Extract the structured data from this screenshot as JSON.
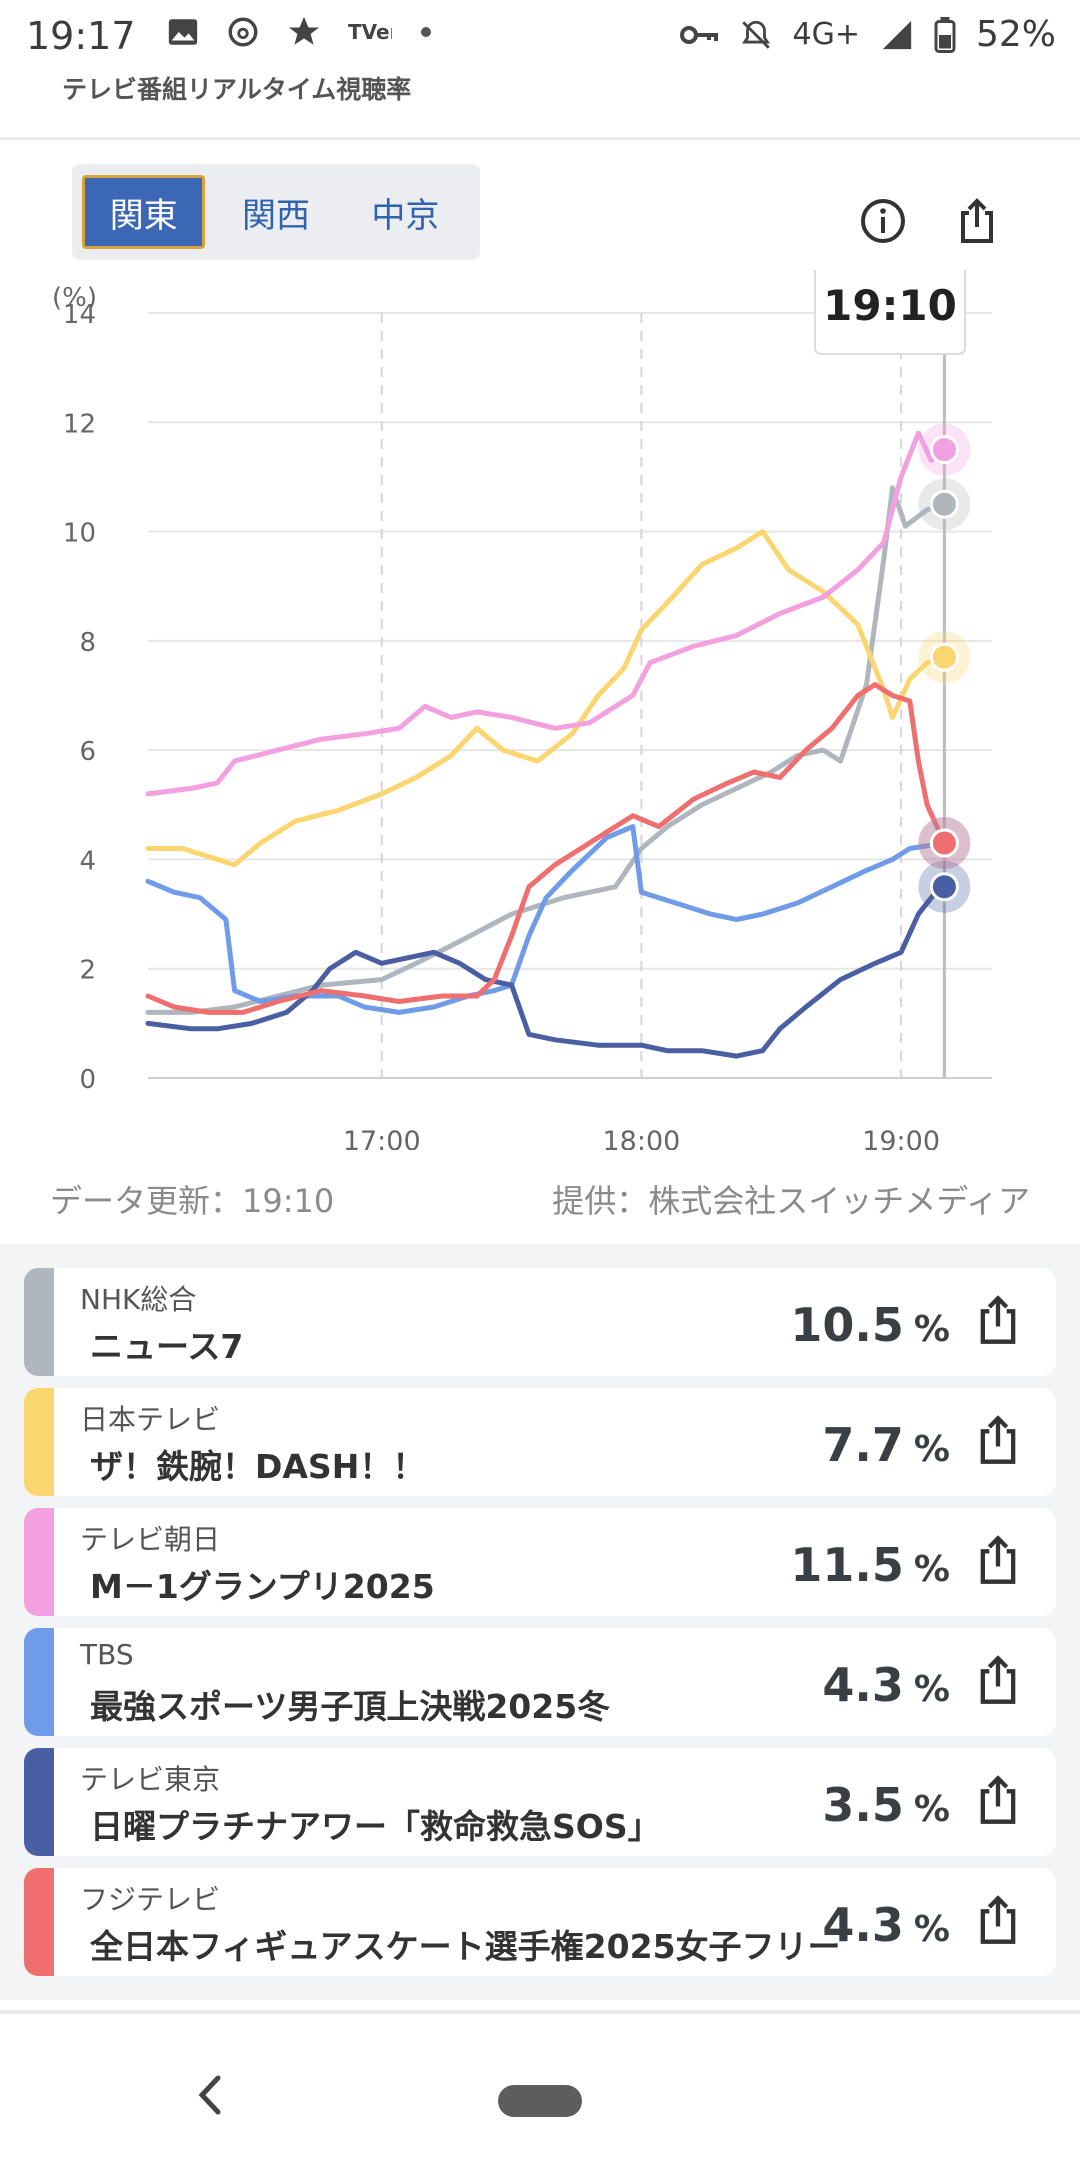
{
  "statusbar": {
    "time": "19:17",
    "network": "4G+",
    "battery": "52%",
    "icons_left": [
      "image-icon",
      "threads-icon",
      "star-icon",
      "tver-icon",
      "dot-icon"
    ],
    "icons_right": [
      "key-icon",
      "bell-off-icon",
      "signal-icon",
      "battery-icon"
    ]
  },
  "app_title": "テレビ番組リアルタイム視聴率",
  "region_tabs": [
    {
      "label": "関東",
      "active": true
    },
    {
      "label": "関西",
      "active": false
    },
    {
      "label": "中京",
      "active": false
    }
  ],
  "top_actions": [
    "info-icon",
    "share-icon"
  ],
  "chart_data": {
    "type": "line",
    "ylabel": "(%)",
    "ylim": [
      0,
      14
    ],
    "yticks": [
      0,
      2,
      4,
      6,
      8,
      10,
      12,
      14
    ],
    "x_range_minutes": [
      0,
      195
    ],
    "xticks": [
      {
        "label": "17:00",
        "t": 54
      },
      {
        "label": "18:00",
        "t": 114
      },
      {
        "label": "19:00",
        "t": 174
      }
    ],
    "cursor_label": "19:10",
    "cursor_t": 184,
    "grid": true,
    "series": [
      {
        "name": "NHK総合",
        "color": "#b0b6bd",
        "values": [
          [
            0,
            1.2
          ],
          [
            10,
            1.2
          ],
          [
            20,
            1.3
          ],
          [
            30,
            1.5
          ],
          [
            40,
            1.7
          ],
          [
            54,
            1.8
          ],
          [
            62,
            2.1
          ],
          [
            72,
            2.5
          ],
          [
            84,
            3.0
          ],
          [
            96,
            3.3
          ],
          [
            108,
            3.5
          ],
          [
            114,
            4.2
          ],
          [
            120,
            4.6
          ],
          [
            128,
            5.0
          ],
          [
            136,
            5.3
          ],
          [
            144,
            5.6
          ],
          [
            150,
            5.9
          ],
          [
            156,
            6.0
          ],
          [
            160,
            5.8
          ],
          [
            166,
            7.2
          ],
          [
            170,
            9.5
          ],
          [
            172,
            10.8
          ],
          [
            175,
            10.1
          ],
          [
            180,
            10.4
          ],
          [
            184,
            10.5
          ]
        ]
      },
      {
        "name": "日本テレビ",
        "color": "#fad570",
        "values": [
          [
            0,
            4.2
          ],
          [
            8,
            4.2
          ],
          [
            16,
            4.0
          ],
          [
            20,
            3.9
          ],
          [
            26,
            4.3
          ],
          [
            34,
            4.7
          ],
          [
            44,
            4.9
          ],
          [
            54,
            5.2
          ],
          [
            62,
            5.5
          ],
          [
            70,
            5.9
          ],
          [
            76,
            6.4
          ],
          [
            82,
            6.0
          ],
          [
            90,
            5.8
          ],
          [
            98,
            6.3
          ],
          [
            104,
            7.0
          ],
          [
            110,
            7.5
          ],
          [
            114,
            8.2
          ],
          [
            120,
            8.7
          ],
          [
            128,
            9.4
          ],
          [
            136,
            9.7
          ],
          [
            142,
            10.0
          ],
          [
            148,
            9.3
          ],
          [
            156,
            8.9
          ],
          [
            164,
            8.3
          ],
          [
            170,
            7.1
          ],
          [
            172,
            6.6
          ],
          [
            176,
            7.3
          ],
          [
            180,
            7.6
          ],
          [
            184,
            7.7
          ]
        ]
      },
      {
        "name": "テレビ朝日",
        "color": "#f2a0e0",
        "values": [
          [
            0,
            5.2
          ],
          [
            10,
            5.3
          ],
          [
            16,
            5.4
          ],
          [
            20,
            5.8
          ],
          [
            30,
            6.0
          ],
          [
            40,
            6.2
          ],
          [
            50,
            6.3
          ],
          [
            58,
            6.4
          ],
          [
            64,
            6.8
          ],
          [
            70,
            6.6
          ],
          [
            76,
            6.7
          ],
          [
            84,
            6.6
          ],
          [
            94,
            6.4
          ],
          [
            102,
            6.5
          ],
          [
            108,
            6.8
          ],
          [
            112,
            7.0
          ],
          [
            116,
            7.6
          ],
          [
            126,
            7.9
          ],
          [
            136,
            8.1
          ],
          [
            146,
            8.5
          ],
          [
            156,
            8.8
          ],
          [
            164,
            9.3
          ],
          [
            170,
            9.8
          ],
          [
            174,
            11.0
          ],
          [
            178,
            11.8
          ],
          [
            181,
            11.3
          ],
          [
            184,
            11.5
          ]
        ]
      },
      {
        "name": "TBS",
        "color": "#6f9be8",
        "values": [
          [
            0,
            3.6
          ],
          [
            6,
            3.4
          ],
          [
            12,
            3.3
          ],
          [
            18,
            2.9
          ],
          [
            20,
            1.6
          ],
          [
            26,
            1.4
          ],
          [
            34,
            1.5
          ],
          [
            44,
            1.5
          ],
          [
            50,
            1.3
          ],
          [
            58,
            1.2
          ],
          [
            66,
            1.3
          ],
          [
            74,
            1.5
          ],
          [
            80,
            1.6
          ],
          [
            84,
            1.7
          ],
          [
            88,
            2.6
          ],
          [
            92,
            3.3
          ],
          [
            98,
            3.8
          ],
          [
            106,
            4.4
          ],
          [
            112,
            4.6
          ],
          [
            114,
            3.4
          ],
          [
            122,
            3.2
          ],
          [
            130,
            3.0
          ],
          [
            136,
            2.9
          ],
          [
            142,
            3.0
          ],
          [
            150,
            3.2
          ],
          [
            158,
            3.5
          ],
          [
            166,
            3.8
          ],
          [
            172,
            4.0
          ],
          [
            176,
            4.2
          ],
          [
            184,
            4.3
          ]
        ]
      },
      {
        "name": "テレビ東京",
        "color": "#4a5fa3",
        "values": [
          [
            0,
            1.0
          ],
          [
            10,
            0.9
          ],
          [
            16,
            0.9
          ],
          [
            24,
            1.0
          ],
          [
            32,
            1.2
          ],
          [
            38,
            1.6
          ],
          [
            42,
            2.0
          ],
          [
            48,
            2.3
          ],
          [
            54,
            2.1
          ],
          [
            60,
            2.2
          ],
          [
            66,
            2.3
          ],
          [
            72,
            2.1
          ],
          [
            78,
            1.8
          ],
          [
            84,
            1.7
          ],
          [
            88,
            0.8
          ],
          [
            94,
            0.7
          ],
          [
            104,
            0.6
          ],
          [
            114,
            0.6
          ],
          [
            120,
            0.5
          ],
          [
            128,
            0.5
          ],
          [
            136,
            0.4
          ],
          [
            142,
            0.5
          ],
          [
            146,
            0.9
          ],
          [
            152,
            1.3
          ],
          [
            160,
            1.8
          ],
          [
            168,
            2.1
          ],
          [
            174,
            2.3
          ],
          [
            178,
            3.0
          ],
          [
            182,
            3.4
          ],
          [
            184,
            3.5
          ]
        ]
      },
      {
        "name": "フジテレビ",
        "color": "#ef6f6f",
        "values": [
          [
            0,
            1.5
          ],
          [
            6,
            1.3
          ],
          [
            14,
            1.2
          ],
          [
            22,
            1.2
          ],
          [
            30,
            1.4
          ],
          [
            40,
            1.6
          ],
          [
            50,
            1.5
          ],
          [
            58,
            1.4
          ],
          [
            68,
            1.5
          ],
          [
            76,
            1.5
          ],
          [
            80,
            1.8
          ],
          [
            84,
            2.6
          ],
          [
            88,
            3.5
          ],
          [
            94,
            3.9
          ],
          [
            100,
            4.2
          ],
          [
            108,
            4.6
          ],
          [
            112,
            4.8
          ],
          [
            118,
            4.6
          ],
          [
            126,
            5.1
          ],
          [
            134,
            5.4
          ],
          [
            140,
            5.6
          ],
          [
            146,
            5.5
          ],
          [
            152,
            6.0
          ],
          [
            158,
            6.4
          ],
          [
            164,
            7.0
          ],
          [
            168,
            7.2
          ],
          [
            172,
            7.0
          ],
          [
            176,
            6.9
          ],
          [
            178,
            5.8
          ],
          [
            180,
            5.0
          ],
          [
            184,
            4.3
          ]
        ]
      }
    ]
  },
  "footer": {
    "updated": "データ更新：19:10",
    "provider": "提供：株式会社スイッチメディア"
  },
  "channels": [
    {
      "channel": "NHK総合",
      "program": "ニュース7",
      "rating": "10.5",
      "unit": "%",
      "color": "#b0b6bd"
    },
    {
      "channel": "日本テレビ",
      "program": "ザ！鉄腕！DASH！！",
      "rating": "7.7",
      "unit": "%",
      "color": "#fad570"
    },
    {
      "channel": "テレビ朝日",
      "program": "M－1グランプリ2025",
      "rating": "11.5",
      "unit": "%",
      "color": "#f2a0e0"
    },
    {
      "channel": "TBS",
      "program": "最強スポーツ男子頂上決戦2025冬",
      "rating": "4.3",
      "unit": "%",
      "color": "#6f9be8"
    },
    {
      "channel": "テレビ東京",
      "program": "日曜プラチナアワー「救命救急SOS」",
      "rating": "3.5",
      "unit": "%",
      "color": "#4a5fa3"
    },
    {
      "channel": "フジテレビ",
      "program": "全日本フィギュアスケート選手権2025女子フリー",
      "rating": "4.3",
      "unit": "%",
      "color": "#ef6f6f"
    }
  ]
}
